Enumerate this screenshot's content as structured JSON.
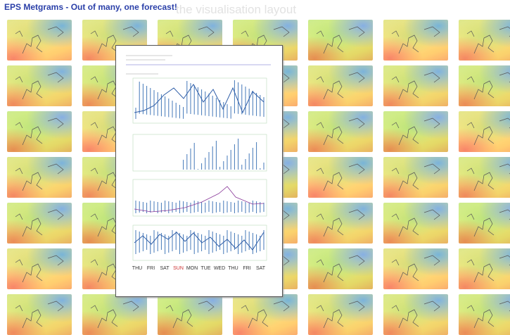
{
  "header": {
    "title": "EPS Metgrams - Out of many, one forecast!"
  },
  "background": {
    "heading": "the visualisation layout"
  },
  "metgram": {
    "days": [
      "THU",
      "FRI",
      "SAT",
      "SUN",
      "MON",
      "TUE",
      "WED",
      "THU",
      "FRI",
      "SAT"
    ]
  }
}
